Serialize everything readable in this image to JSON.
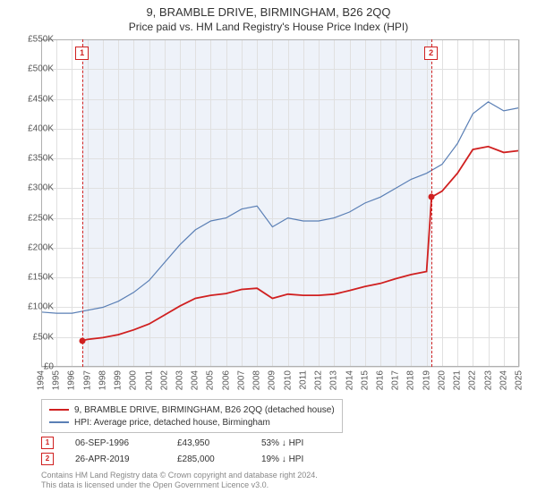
{
  "title": {
    "line1": "9, BRAMBLE DRIVE, BIRMINGHAM, B26 2QQ",
    "line2": "Price paid vs. HM Land Registry's House Price Index (HPI)",
    "fontsize_line1": 13,
    "fontsize_line2": 12,
    "color": "#333333"
  },
  "chart": {
    "type": "line",
    "background_color": "#ffffff",
    "grid_color": "#e0e0e0",
    "border_color": "#b0b0b0",
    "shade_color": "#e8eef7",
    "shade_start_year": 1996.68,
    "shade_end_year": 2019.32,
    "x_axis": {
      "min": 1994,
      "max": 2025,
      "tick_step": 1,
      "label_fontsize": 10,
      "label_rotation": -90,
      "label_color": "#555555"
    },
    "y_axis": {
      "min": 0,
      "max": 550000,
      "tick_step": 50000,
      "format": "currency_k",
      "label_fontsize": 10,
      "label_color": "#555555",
      "labels": [
        "£0",
        "£50K",
        "£100K",
        "£150K",
        "£200K",
        "£250K",
        "£300K",
        "£350K",
        "£400K",
        "£450K",
        "£500K",
        "£550K"
      ]
    },
    "series": [
      {
        "id": "hpi",
        "label": "HPI: Average price, detached house, Birmingham",
        "color": "#5a7fb5",
        "line_width": 1.2,
        "x": [
          1994,
          1995,
          1996,
          1997,
          1998,
          1999,
          2000,
          2001,
          2002,
          2003,
          2004,
          2005,
          2006,
          2007,
          2008,
          2009,
          2010,
          2011,
          2012,
          2013,
          2014,
          2015,
          2016,
          2017,
          2018,
          2019,
          2020,
          2021,
          2022,
          2023,
          2024,
          2025
        ],
        "y": [
          92000,
          90000,
          90000,
          95000,
          100000,
          110000,
          125000,
          145000,
          175000,
          205000,
          230000,
          245000,
          250000,
          265000,
          270000,
          235000,
          250000,
          245000,
          245000,
          250000,
          260000,
          275000,
          285000,
          300000,
          315000,
          325000,
          340000,
          375000,
          425000,
          445000,
          430000,
          435000
        ]
      },
      {
        "id": "property",
        "label": "9, BRAMBLE DRIVE, BIRMINGHAM, B26 2QQ (detached house)",
        "color": "#d02020",
        "line_width": 1.8,
        "x": [
          1996.68,
          1997,
          1998,
          1999,
          2000,
          2001,
          2002,
          2003,
          2004,
          2005,
          2006,
          2007,
          2008,
          2009,
          2010,
          2011,
          2012,
          2013,
          2014,
          2015,
          2016,
          2017,
          2018,
          2019,
          2019.32,
          2020,
          2021,
          2022,
          2023,
          2024,
          2025
        ],
        "y": [
          43950,
          46000,
          49000,
          54000,
          62000,
          72000,
          87000,
          102000,
          115000,
          120000,
          123000,
          130000,
          132000,
          115000,
          122000,
          120000,
          120000,
          122000,
          128000,
          135000,
          140000,
          148000,
          155000,
          160000,
          285000,
          295000,
          325000,
          365000,
          370000,
          360000,
          363000
        ]
      }
    ],
    "sale_markers": [
      {
        "n": "1",
        "year": 1996.68,
        "price": 43950
      },
      {
        "n": "2",
        "year": 2019.32,
        "price": 285000
      }
    ]
  },
  "legend": {
    "border_color": "#c0c0c0",
    "property_label": "9, BRAMBLE DRIVE, BIRMINGHAM, B26 2QQ (detached house)",
    "hpi_label": "HPI: Average price, detached house, Birmingham",
    "property_color": "#d02020",
    "hpi_color": "#5a7fb5"
  },
  "sales": [
    {
      "n": "1",
      "date": "06-SEP-1996",
      "price": "£43,950",
      "delta": "53% ↓ HPI"
    },
    {
      "n": "2",
      "date": "26-APR-2019",
      "price": "£285,000",
      "delta": "19% ↓ HPI"
    }
  ],
  "attribution": {
    "line1": "Contains HM Land Registry data © Crown copyright and database right 2024.",
    "line2": "This data is licensed under the Open Government Licence v3.0."
  }
}
